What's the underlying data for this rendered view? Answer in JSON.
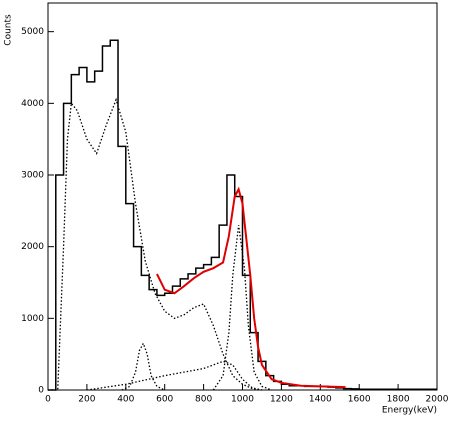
{
  "chart_data": {
    "type": "line",
    "x_label": "Energy(keV)",
    "y_label": "Counts",
    "xlim": [
      0,
      2000
    ],
    "ylim": [
      0,
      5400
    ],
    "xticks": [
      0,
      200,
      400,
      600,
      800,
      1000,
      1200,
      1400,
      1600,
      1800,
      2000
    ],
    "yticks": [
      0,
      1000,
      2000,
      3000,
      4000,
      5000
    ],
    "series": [
      {
        "color": "#000000",
        "dash": "solid",
        "step": true,
        "x": [
          0,
          40,
          80,
          120,
          160,
          200,
          240,
          280,
          320,
          360,
          400,
          440,
          480,
          520,
          560,
          600,
          640,
          680,
          720,
          760,
          800,
          840,
          880,
          920,
          960,
          1000,
          1040,
          1080,
          1120,
          1160,
          1200,
          1240,
          1280,
          1320,
          1360,
          1400,
          1440,
          1480,
          1520,
          1560,
          1600,
          1640,
          1680,
          1720,
          1760,
          1800,
          1840,
          1880,
          1920,
          1960,
          2000
        ],
        "values": [
          0,
          0,
          3000,
          4000,
          4400,
          4500,
          4300,
          4450,
          4800,
          4880,
          3400,
          2600,
          2000,
          1600,
          1400,
          1320,
          1350,
          1450,
          1550,
          1620,
          1700,
          1750,
          1850,
          2300,
          3000,
          2700,
          1600,
          800,
          400,
          200,
          120,
          80,
          60,
          60,
          50,
          50,
          50,
          40,
          30,
          20,
          15,
          10,
          10,
          10,
          10,
          10,
          10,
          10,
          10,
          10,
          10
        ]
      },
      {
        "color": "#000000",
        "dash": "dotted",
        "step": false,
        "x": [
          0,
          50,
          80,
          100,
          120,
          150,
          200,
          250,
          300,
          350,
          400,
          450,
          500,
          550,
          600,
          650,
          700,
          750,
          800,
          850,
          900,
          950,
          1000,
          1050,
          1100
        ],
        "values": [
          0,
          0,
          2000,
          3500,
          4000,
          3900,
          3500,
          3300,
          3700,
          4050,
          3600,
          2600,
          1800,
          1350,
          1100,
          1000,
          1050,
          1150,
          1200,
          900,
          500,
          200,
          80,
          20,
          0
        ]
      },
      {
        "color": "#000000",
        "dash": "dotted",
        "step": false,
        "x": [
          380,
          420,
          450,
          470,
          490,
          510,
          530,
          560,
          600
        ],
        "values": [
          0,
          50,
          250,
          550,
          650,
          500,
          200,
          50,
          0
        ]
      },
      {
        "color": "#000000",
        "dash": "dotted",
        "step": false,
        "x": [
          200,
          400,
          600,
          800,
          900,
          950,
          1000,
          1050,
          1100
        ],
        "values": [
          0,
          80,
          200,
          300,
          400,
          350,
          150,
          30,
          0
        ]
      },
      {
        "color": "#000000",
        "dash": "dotted",
        "step": false,
        "x": [
          850,
          900,
          930,
          950,
          980,
          1010,
          1030,
          1060,
          1100,
          1150
        ],
        "values": [
          0,
          200,
          800,
          1600,
          2300,
          1700,
          900,
          250,
          50,
          0
        ]
      },
      {
        "color": "#e00000",
        "dash": "solid",
        "step": false,
        "x": [
          560,
          600,
          650,
          700,
          750,
          800,
          850,
          900,
          930,
          960,
          980,
          1000,
          1020,
          1040,
          1060,
          1080,
          1100,
          1150,
          1200,
          1300,
          1400,
          1530
        ],
        "values": [
          1620,
          1400,
          1350,
          1450,
          1560,
          1650,
          1700,
          1780,
          2150,
          2700,
          2800,
          2600,
          2100,
          1600,
          1000,
          600,
          350,
          150,
          100,
          60,
          50,
          40
        ]
      }
    ]
  }
}
